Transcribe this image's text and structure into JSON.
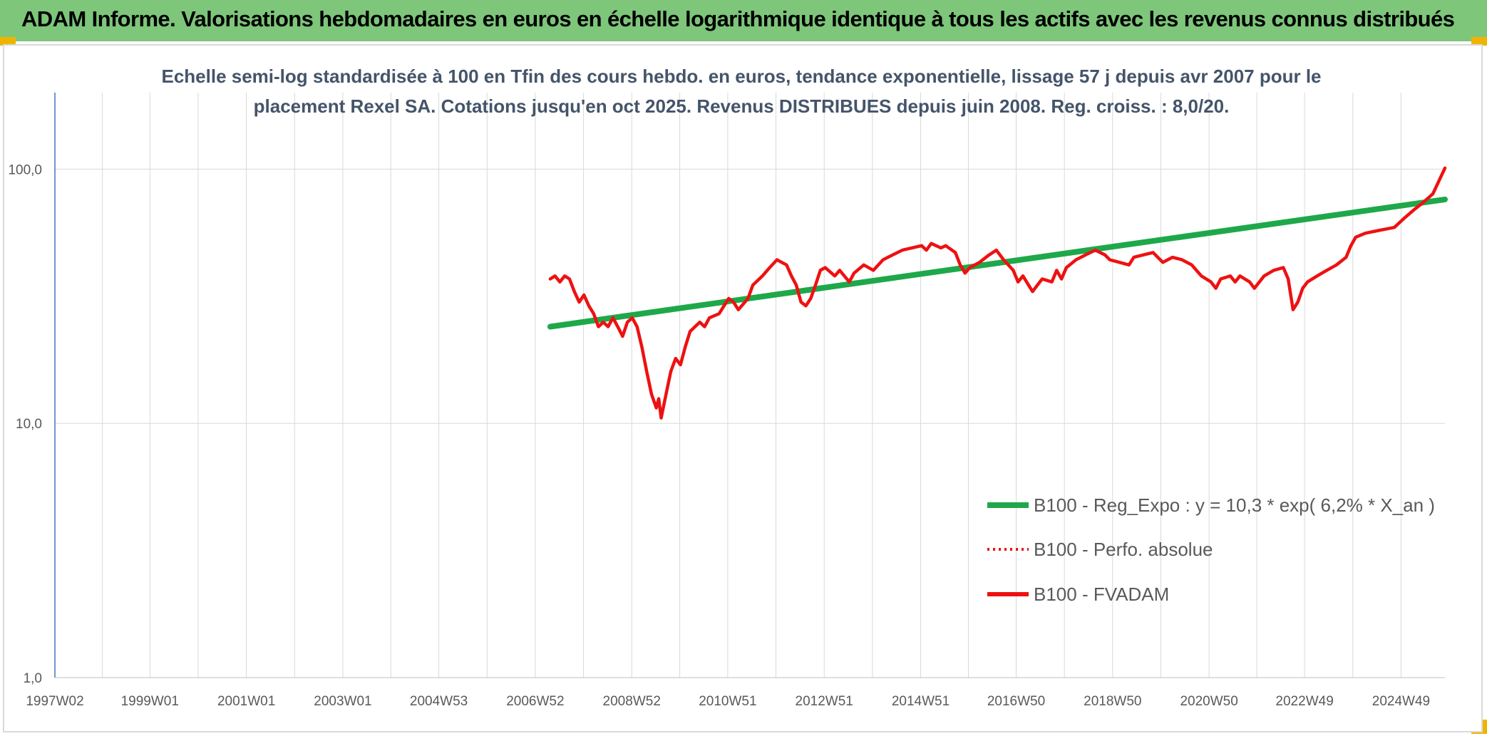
{
  "header": {
    "title": "ADAM Informe. Valorisations hebdomadaires en euros en échelle logarithmique identique à tous les actifs avec les revenus connus distribués"
  },
  "colors": {
    "header_bg": "#7dc67a",
    "regression": "#1ea84a",
    "fvadam": "#ee1111",
    "perfo": "#ee1111",
    "grid": "#d9d9d9",
    "title_text": "#44546a"
  },
  "chart_data": {
    "type": "line",
    "title_lines": [
      "Echelle semi-log standardisée à 100 en Tfin des cours hebdo. en euros, tendance exponentielle, lissage 57 j depuis avr 2007 pour le",
      "placement Rexel SA. Cotations jusqu'en oct 2025. Revenus DISTRIBUES depuis juin 2008. Reg. croiss. : 8,0/20."
    ],
    "y_scale": "log",
    "ylim": [
      1,
      200
    ],
    "y_ticks": [
      {
        "value": 1,
        "label": "1,0"
      },
      {
        "value": 10,
        "label": "10,0"
      },
      {
        "value": 100,
        "label": "100,0"
      }
    ],
    "xlim": [
      1997.03,
      2025.85
    ],
    "x_ticks": [
      {
        "value": 1997.03,
        "label": "1997W02"
      },
      {
        "value": 1999.0,
        "label": "1999W01"
      },
      {
        "value": 2001.0,
        "label": "2001W01"
      },
      {
        "value": 2003.0,
        "label": "2003W01"
      },
      {
        "value": 2004.99,
        "label": "2004W53"
      },
      {
        "value": 2006.99,
        "label": "2006W52"
      },
      {
        "value": 2008.99,
        "label": "2008W52"
      },
      {
        "value": 2010.98,
        "label": "2010W51"
      },
      {
        "value": 2012.98,
        "label": "2012W51"
      },
      {
        "value": 2014.98,
        "label": "2014W51"
      },
      {
        "value": 2016.96,
        "label": "2016W50"
      },
      {
        "value": 2018.96,
        "label": "2018W50"
      },
      {
        "value": 2020.96,
        "label": "2020W50"
      },
      {
        "value": 2022.94,
        "label": "2022W49"
      },
      {
        "value": 2024.94,
        "label": "2024W49"
      }
    ],
    "legend_placement": "bottom-right",
    "series": [
      {
        "name": "B100 - Reg_Expo : y = 10,3 * exp( 6,2% *  X_an )",
        "style": "solid-thick",
        "color": "#1ea84a",
        "points": [
          [
            2007.3,
            24
          ],
          [
            2025.85,
            76
          ]
        ]
      },
      {
        "name": "B100 - Perfo. absolue",
        "style": "dotted",
        "color": "#ee1111",
        "points": []
      },
      {
        "name": "B100 - FVADAM",
        "style": "solid",
        "color": "#ee1111",
        "points": [
          [
            2007.3,
            37
          ],
          [
            2007.4,
            38
          ],
          [
            2007.5,
            36
          ],
          [
            2007.6,
            38
          ],
          [
            2007.7,
            37
          ],
          [
            2007.8,
            33
          ],
          [
            2007.9,
            30
          ],
          [
            2008.0,
            32
          ],
          [
            2008.1,
            29
          ],
          [
            2008.2,
            27
          ],
          [
            2008.3,
            24
          ],
          [
            2008.4,
            25
          ],
          [
            2008.5,
            24
          ],
          [
            2008.6,
            26
          ],
          [
            2008.7,
            24
          ],
          [
            2008.8,
            22
          ],
          [
            2008.9,
            25
          ],
          [
            2009.0,
            26
          ],
          [
            2009.1,
            24
          ],
          [
            2009.2,
            20
          ],
          [
            2009.3,
            16
          ],
          [
            2009.4,
            13
          ],
          [
            2009.5,
            11.5
          ],
          [
            2009.55,
            12.5
          ],
          [
            2009.6,
            10.5
          ],
          [
            2009.7,
            13
          ],
          [
            2009.8,
            16
          ],
          [
            2009.9,
            18
          ],
          [
            2010.0,
            17
          ],
          [
            2010.1,
            20
          ],
          [
            2010.2,
            23
          ],
          [
            2010.4,
            25
          ],
          [
            2010.5,
            24
          ],
          [
            2010.6,
            26
          ],
          [
            2010.8,
            27
          ],
          [
            2011.0,
            31
          ],
          [
            2011.1,
            30
          ],
          [
            2011.2,
            28
          ],
          [
            2011.4,
            31
          ],
          [
            2011.5,
            35
          ],
          [
            2011.7,
            38
          ],
          [
            2011.85,
            41
          ],
          [
            2012.0,
            44
          ],
          [
            2012.2,
            42
          ],
          [
            2012.3,
            38
          ],
          [
            2012.4,
            35
          ],
          [
            2012.5,
            30
          ],
          [
            2012.6,
            29
          ],
          [
            2012.7,
            31
          ],
          [
            2012.8,
            35
          ],
          [
            2012.9,
            40
          ],
          [
            2013.0,
            41
          ],
          [
            2013.2,
            38
          ],
          [
            2013.3,
            40
          ],
          [
            2013.5,
            36
          ],
          [
            2013.6,
            39
          ],
          [
            2013.8,
            42
          ],
          [
            2014.0,
            40
          ],
          [
            2014.2,
            44
          ],
          [
            2014.4,
            46
          ],
          [
            2014.6,
            48
          ],
          [
            2014.8,
            49
          ],
          [
            2015.0,
            50
          ],
          [
            2015.1,
            48
          ],
          [
            2015.2,
            51
          ],
          [
            2015.4,
            49
          ],
          [
            2015.5,
            50
          ],
          [
            2015.7,
            47
          ],
          [
            2015.8,
            42
          ],
          [
            2015.9,
            39
          ],
          [
            2016.0,
            41
          ],
          [
            2016.2,
            43
          ],
          [
            2016.4,
            46
          ],
          [
            2016.55,
            48
          ],
          [
            2016.7,
            44
          ],
          [
            2016.9,
            40
          ],
          [
            2017.0,
            36
          ],
          [
            2017.1,
            38
          ],
          [
            2017.3,
            33
          ],
          [
            2017.4,
            35
          ],
          [
            2017.5,
            37
          ],
          [
            2017.7,
            36
          ],
          [
            2017.8,
            40
          ],
          [
            2017.9,
            37
          ],
          [
            2018.0,
            41
          ],
          [
            2018.2,
            44
          ],
          [
            2018.4,
            46
          ],
          [
            2018.6,
            48
          ],
          [
            2018.8,
            46
          ],
          [
            2018.9,
            44
          ],
          [
            2019.1,
            43
          ],
          [
            2019.3,
            42
          ],
          [
            2019.4,
            45
          ],
          [
            2019.6,
            46
          ],
          [
            2019.8,
            47
          ],
          [
            2020.0,
            43
          ],
          [
            2020.2,
            45
          ],
          [
            2020.4,
            44
          ],
          [
            2020.6,
            42
          ],
          [
            2020.8,
            38
          ],
          [
            2021.0,
            36
          ],
          [
            2021.1,
            34
          ],
          [
            2021.2,
            37
          ],
          [
            2021.4,
            38
          ],
          [
            2021.5,
            36
          ],
          [
            2021.6,
            38
          ],
          [
            2021.8,
            36
          ],
          [
            2021.9,
            34
          ],
          [
            2022.1,
            38
          ],
          [
            2022.3,
            40
          ],
          [
            2022.5,
            41
          ],
          [
            2022.6,
            37
          ],
          [
            2022.7,
            28
          ],
          [
            2022.8,
            30
          ],
          [
            2022.9,
            34
          ],
          [
            2023.0,
            36
          ],
          [
            2023.2,
            38
          ],
          [
            2023.4,
            40
          ],
          [
            2023.6,
            42
          ],
          [
            2023.8,
            45
          ],
          [
            2023.9,
            50
          ],
          [
            2024.0,
            54
          ],
          [
            2024.2,
            56
          ],
          [
            2024.4,
            57
          ],
          [
            2024.6,
            58
          ],
          [
            2024.8,
            59
          ],
          [
            2025.0,
            64
          ],
          [
            2025.2,
            69
          ],
          [
            2025.4,
            74
          ],
          [
            2025.6,
            80
          ],
          [
            2025.85,
            101
          ]
        ]
      }
    ]
  }
}
